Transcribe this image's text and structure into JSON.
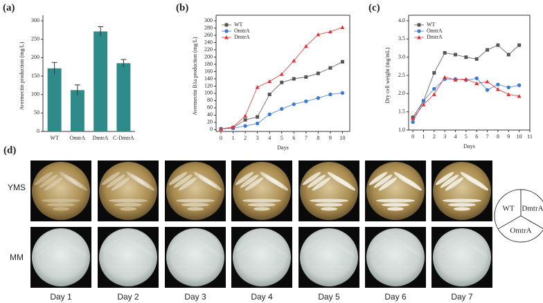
{
  "chart_data": [
    {
      "type": "bar",
      "panel": "(a)",
      "ylabel": "Avermectin production (mg/L)",
      "categories": [
        "WT",
        "OmtrA",
        "DmtrA",
        "C-DmtrA"
      ],
      "values": [
        171,
        112,
        271,
        185
      ],
      "errors": [
        16,
        14,
        13,
        10
      ],
      "color": "#2f8a8a",
      "ylim": [
        0,
        300
      ],
      "yticks": [
        0,
        50,
        100,
        150,
        200,
        250,
        300
      ]
    },
    {
      "type": "line",
      "panel": "(b)",
      "ylabel": "Avermectin B1a production (mg/L)",
      "xlabel": "Days",
      "x": [
        0,
        1,
        2,
        3,
        4,
        5,
        6,
        7,
        8,
        9,
        10
      ],
      "series": [
        {
          "name": "WT",
          "color": "#555555",
          "marker": "square",
          "values": [
            2,
            5,
            27,
            35,
            97,
            130,
            140,
            145,
            155,
            170,
            187
          ]
        },
        {
          "name": "OmtrA",
          "color": "#3a7bd5",
          "marker": "circle",
          "values": [
            2,
            4,
            10,
            17,
            42,
            57,
            70,
            78,
            87,
            97,
            101
          ]
        },
        {
          "name": "DmtrA",
          "color": "#e03030",
          "marker": "triangle",
          "values": [
            2,
            7,
            38,
            117,
            133,
            153,
            190,
            230,
            262,
            270,
            282
          ]
        }
      ],
      "xlim": [
        -0.4,
        10.6
      ],
      "xticks": [
        0,
        1,
        2,
        3,
        4,
        5,
        6,
        7,
        8,
        9,
        10
      ],
      "ylim": [
        -5,
        300
      ],
      "yticks": [
        0,
        20,
        40,
        60,
        80,
        100,
        120,
        140,
        160,
        180,
        200,
        220,
        240,
        260,
        280,
        300
      ],
      "legend": "upper left"
    },
    {
      "type": "line",
      "panel": "(c)",
      "ylabel": "Dry cell weight (mg/mL)",
      "xlabel": "Days",
      "x": [
        0,
        1,
        2,
        3,
        4,
        5,
        6,
        7,
        8,
        9,
        10
      ],
      "series": [
        {
          "name": "WT",
          "color": "#555555",
          "marker": "square",
          "values": [
            1.35,
            1.8,
            2.57,
            3.12,
            3.07,
            3.0,
            2.95,
            3.2,
            3.33,
            3.07,
            3.33
          ]
        },
        {
          "name": "OmtrA",
          "color": "#3a7bd5",
          "marker": "circle",
          "values": [
            1.22,
            1.8,
            2.13,
            2.4,
            2.4,
            2.37,
            2.42,
            2.1,
            2.25,
            2.17,
            2.23
          ]
        },
        {
          "name": "DmtrA",
          "color": "#e03030",
          "marker": "triangle",
          "values": [
            1.32,
            1.7,
            1.98,
            2.45,
            2.38,
            2.4,
            2.28,
            2.33,
            2.12,
            1.98,
            1.93
          ]
        }
      ],
      "xlim": [
        -0.4,
        11
      ],
      "xticks": [
        0,
        1,
        2,
        3,
        4,
        5,
        6,
        7,
        8,
        9,
        10,
        11
      ],
      "ylim": [
        1,
        4
      ],
      "yticks": [
        {
          "value": 1,
          "label": "1.0"
        },
        1.5,
        {
          "value": 2,
          "label": "2.0"
        },
        2.5,
        {
          "value": 3,
          "label": "3.0"
        },
        3.5,
        {
          "value": 4,
          "label": "4.0"
        }
      ],
      "legend": "upper left"
    }
  ],
  "figure_d": {
    "panel": "(d)",
    "rows": [
      "YMS",
      "MM"
    ],
    "days": [
      "Day 1",
      "Day 2",
      "Day 3",
      "Day 4",
      "Day 5",
      "Day 6",
      "Day 7"
    ],
    "legend": [
      "WT",
      "DmtrA",
      "OmtrA"
    ]
  }
}
